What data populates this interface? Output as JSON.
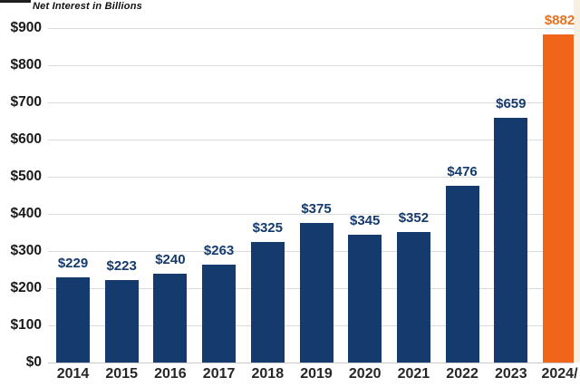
{
  "chart_data": {
    "type": "bar",
    "title": "Net Interest in Billions",
    "categories": [
      "2014",
      "2015",
      "2016",
      "2017",
      "2018",
      "2019",
      "2020",
      "2021",
      "2022",
      "2023",
      "2024/"
    ],
    "values": [
      229,
      223,
      240,
      263,
      325,
      375,
      345,
      352,
      476,
      659,
      882
    ],
    "bar_labels": [
      "$229",
      "$223",
      "$240",
      "$263",
      "$325",
      "$375",
      "$345",
      "$352",
      "$476",
      "$659",
      "$882"
    ],
    "xlabel": "",
    "ylabel": "",
    "ylim": [
      0,
      900
    ],
    "yticks": {
      "values": [
        0,
        100,
        200,
        300,
        400,
        500,
        600,
        700,
        800,
        900
      ],
      "labels": [
        "$0",
        "$100",
        "$200",
        "$300",
        "$400",
        "$500",
        "$600",
        "$700",
        "$800",
        "$900"
      ]
    },
    "grid": true,
    "legend": false,
    "bar_color": "#143A6E",
    "highlight_index": 10,
    "highlight_color": "#F0651A",
    "value_label_color": "#143A6E",
    "highlight_value_label_color": "#E8711F",
    "xtick_color": "#262626",
    "ytick_color": "#1A1A1A",
    "gridline_color": "#DBDBDB",
    "axisline_color": "#C9C9C9",
    "background_color": "#FFFFFF",
    "edge_strip_color": "#F5F0E1"
  }
}
